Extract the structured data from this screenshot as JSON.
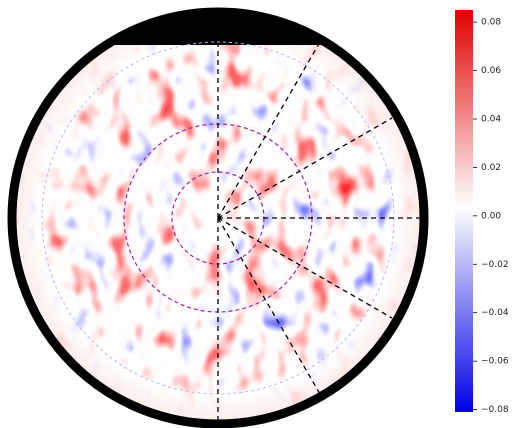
{
  "chart_data": {
    "type": "polar-field",
    "colorbar": {
      "lim": [
        -0.081,
        0.085
      ],
      "ticks": [
        0.08,
        0.06,
        0.04,
        0.02,
        {
          "value": 0,
          "label": "0.00"
        },
        {
          "value": -0.02,
          "label": "−0.02"
        },
        {
          "value": -0.04,
          "label": "−0.04"
        },
        {
          "value": -0.06,
          "label": "−0.06"
        },
        {
          "value": -0.08,
          "label": "−0.08"
        }
      ]
    }
  }
}
